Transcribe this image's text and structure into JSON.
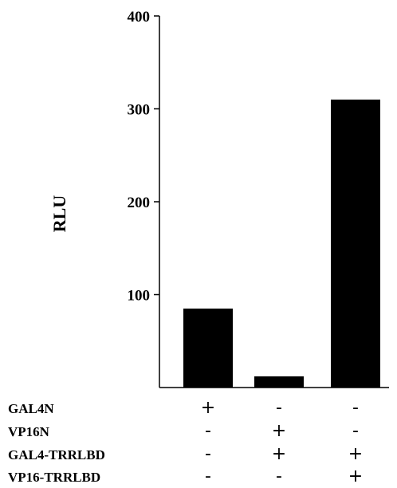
{
  "chart_data": {
    "type": "bar",
    "ylabel": "RLU",
    "ylim": [
      0,
      400
    ],
    "yticks": [
      100,
      200,
      300,
      400
    ],
    "bar_color": "#000000",
    "values": [
      85,
      12,
      310
    ],
    "conditions": [
      {
        "label": "GAL4N",
        "marks": [
          "+",
          "-",
          "-"
        ]
      },
      {
        "label": "VP16N",
        "marks": [
          "-",
          "+",
          "-"
        ]
      },
      {
        "label": "GAL4-TRRLBD",
        "marks": [
          "-",
          "+",
          "+"
        ]
      },
      {
        "label": "VP16-TRRLBD",
        "marks": [
          "-",
          "-",
          "+"
        ]
      }
    ]
  }
}
